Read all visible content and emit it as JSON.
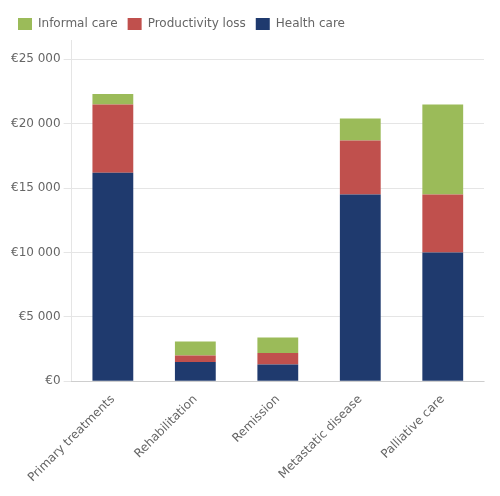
{
  "chart_data": {
    "type": "bar",
    "stacked": true,
    "categories": [
      "Primary treatments",
      "Rehabilitation",
      "Remission",
      "Metastatic disease",
      "Palliative care"
    ],
    "series": [
      {
        "name": "Health care",
        "color": "#1f3a6e",
        "values": [
          16200,
          1500,
          1300,
          14500,
          10000
        ]
      },
      {
        "name": "Productivity loss",
        "color": "#c0504d",
        "values": [
          5300,
          500,
          900,
          4200,
          4500
        ]
      },
      {
        "name": "Informal care",
        "color": "#9bbb59",
        "values": [
          800,
          1100,
          1200,
          1700,
          7000
        ]
      }
    ],
    "ylim": [
      0,
      26500
    ],
    "yticks": [
      {
        "value": 0,
        "label": "€0"
      },
      {
        "value": 5000,
        "label": "€5 000"
      },
      {
        "value": 10000,
        "label": "€10 000"
      },
      {
        "value": 15000,
        "label": "€15 000"
      },
      {
        "value": 20000,
        "label": "€20 000"
      },
      {
        "value": 25000,
        "label": "€25 000"
      }
    ],
    "grid": true,
    "legend": "top"
  }
}
